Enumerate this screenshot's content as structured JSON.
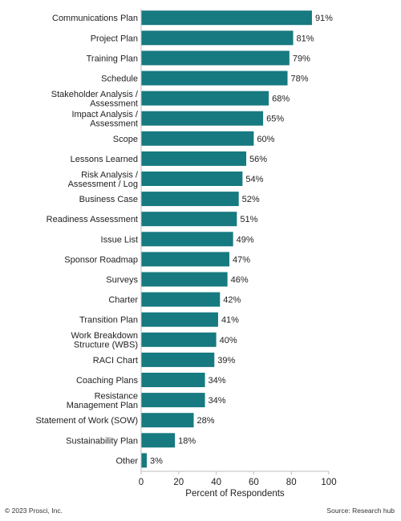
{
  "chart_data": {
    "type": "bar",
    "orientation": "horizontal",
    "categories": [
      "Communications Plan",
      "Project Plan",
      "Training Plan",
      "Schedule",
      "Stakeholder Analysis /\nAssessment",
      "Impact Analysis /\nAssessment",
      "Scope",
      "Lessons Learned",
      "Risk Analysis /\nAssessment / Log",
      "Business Case",
      "Readiness Assessment",
      "Issue List",
      "Sponsor Roadmap",
      "Surveys",
      "Charter",
      "Transition Plan",
      "Work Breakdown\nStructure (WBS)",
      "RACI Chart",
      "Coaching Plans",
      "Resistance\nManagement Plan",
      "Statement of Work (SOW)",
      "Sustainability Plan",
      "Other"
    ],
    "values": [
      91,
      81,
      79,
      78,
      68,
      65,
      60,
      56,
      54,
      52,
      51,
      49,
      47,
      46,
      42,
      41,
      40,
      39,
      34,
      34,
      28,
      18,
      3
    ],
    "value_labels": [
      "91%",
      "81%",
      "79%",
      "78%",
      "68%",
      "65%",
      "60%",
      "56%",
      "54%",
      "52%",
      "51%",
      "49%",
      "47%",
      "46%",
      "42%",
      "41%",
      "40%",
      "39%",
      "34%",
      "34%",
      "28%",
      "18%",
      "3%"
    ],
    "xlim": [
      0,
      100
    ],
    "xticks": [
      0,
      20,
      40,
      60,
      80,
      100
    ],
    "xlabel": "Percent of Respondents",
    "ylabel": "",
    "title": "",
    "grid": false,
    "legend": "none",
    "bar_color": "#167a80"
  },
  "footer": {
    "copyright": "© 2023 Prosci, Inc.",
    "source": "Source: Research hub"
  }
}
